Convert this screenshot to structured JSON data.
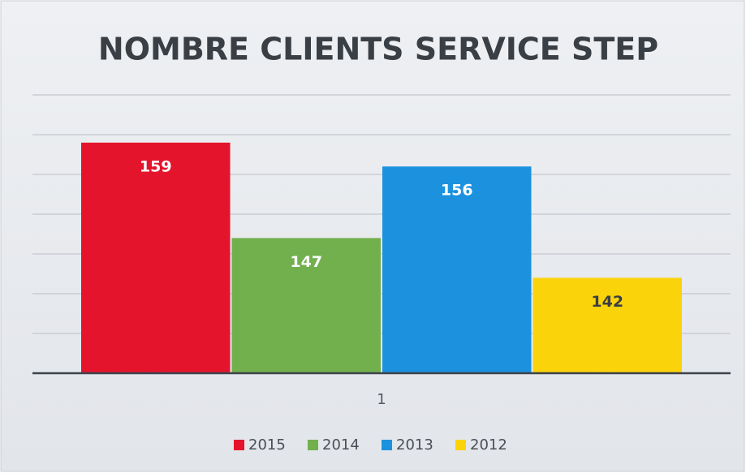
{
  "chart_data": {
    "type": "bar",
    "title": "NOMBRE CLIENTS SERVICE STEP",
    "categories": [
      "1"
    ],
    "series": [
      {
        "name": "2015",
        "color": "#e3142c",
        "values": [
          159
        ]
      },
      {
        "name": "2014",
        "color": "#72b04e",
        "values": [
          147
        ]
      },
      {
        "name": "2013",
        "color": "#1c92df",
        "values": [
          156
        ]
      },
      {
        "name": "2012",
        "color": "#fbd30b",
        "values": [
          142
        ]
      }
    ],
    "ylim": [
      130,
      165
    ],
    "yticks": [
      130,
      135,
      140,
      145,
      150,
      155,
      160,
      165
    ],
    "grid": true,
    "legend": "bottom"
  }
}
